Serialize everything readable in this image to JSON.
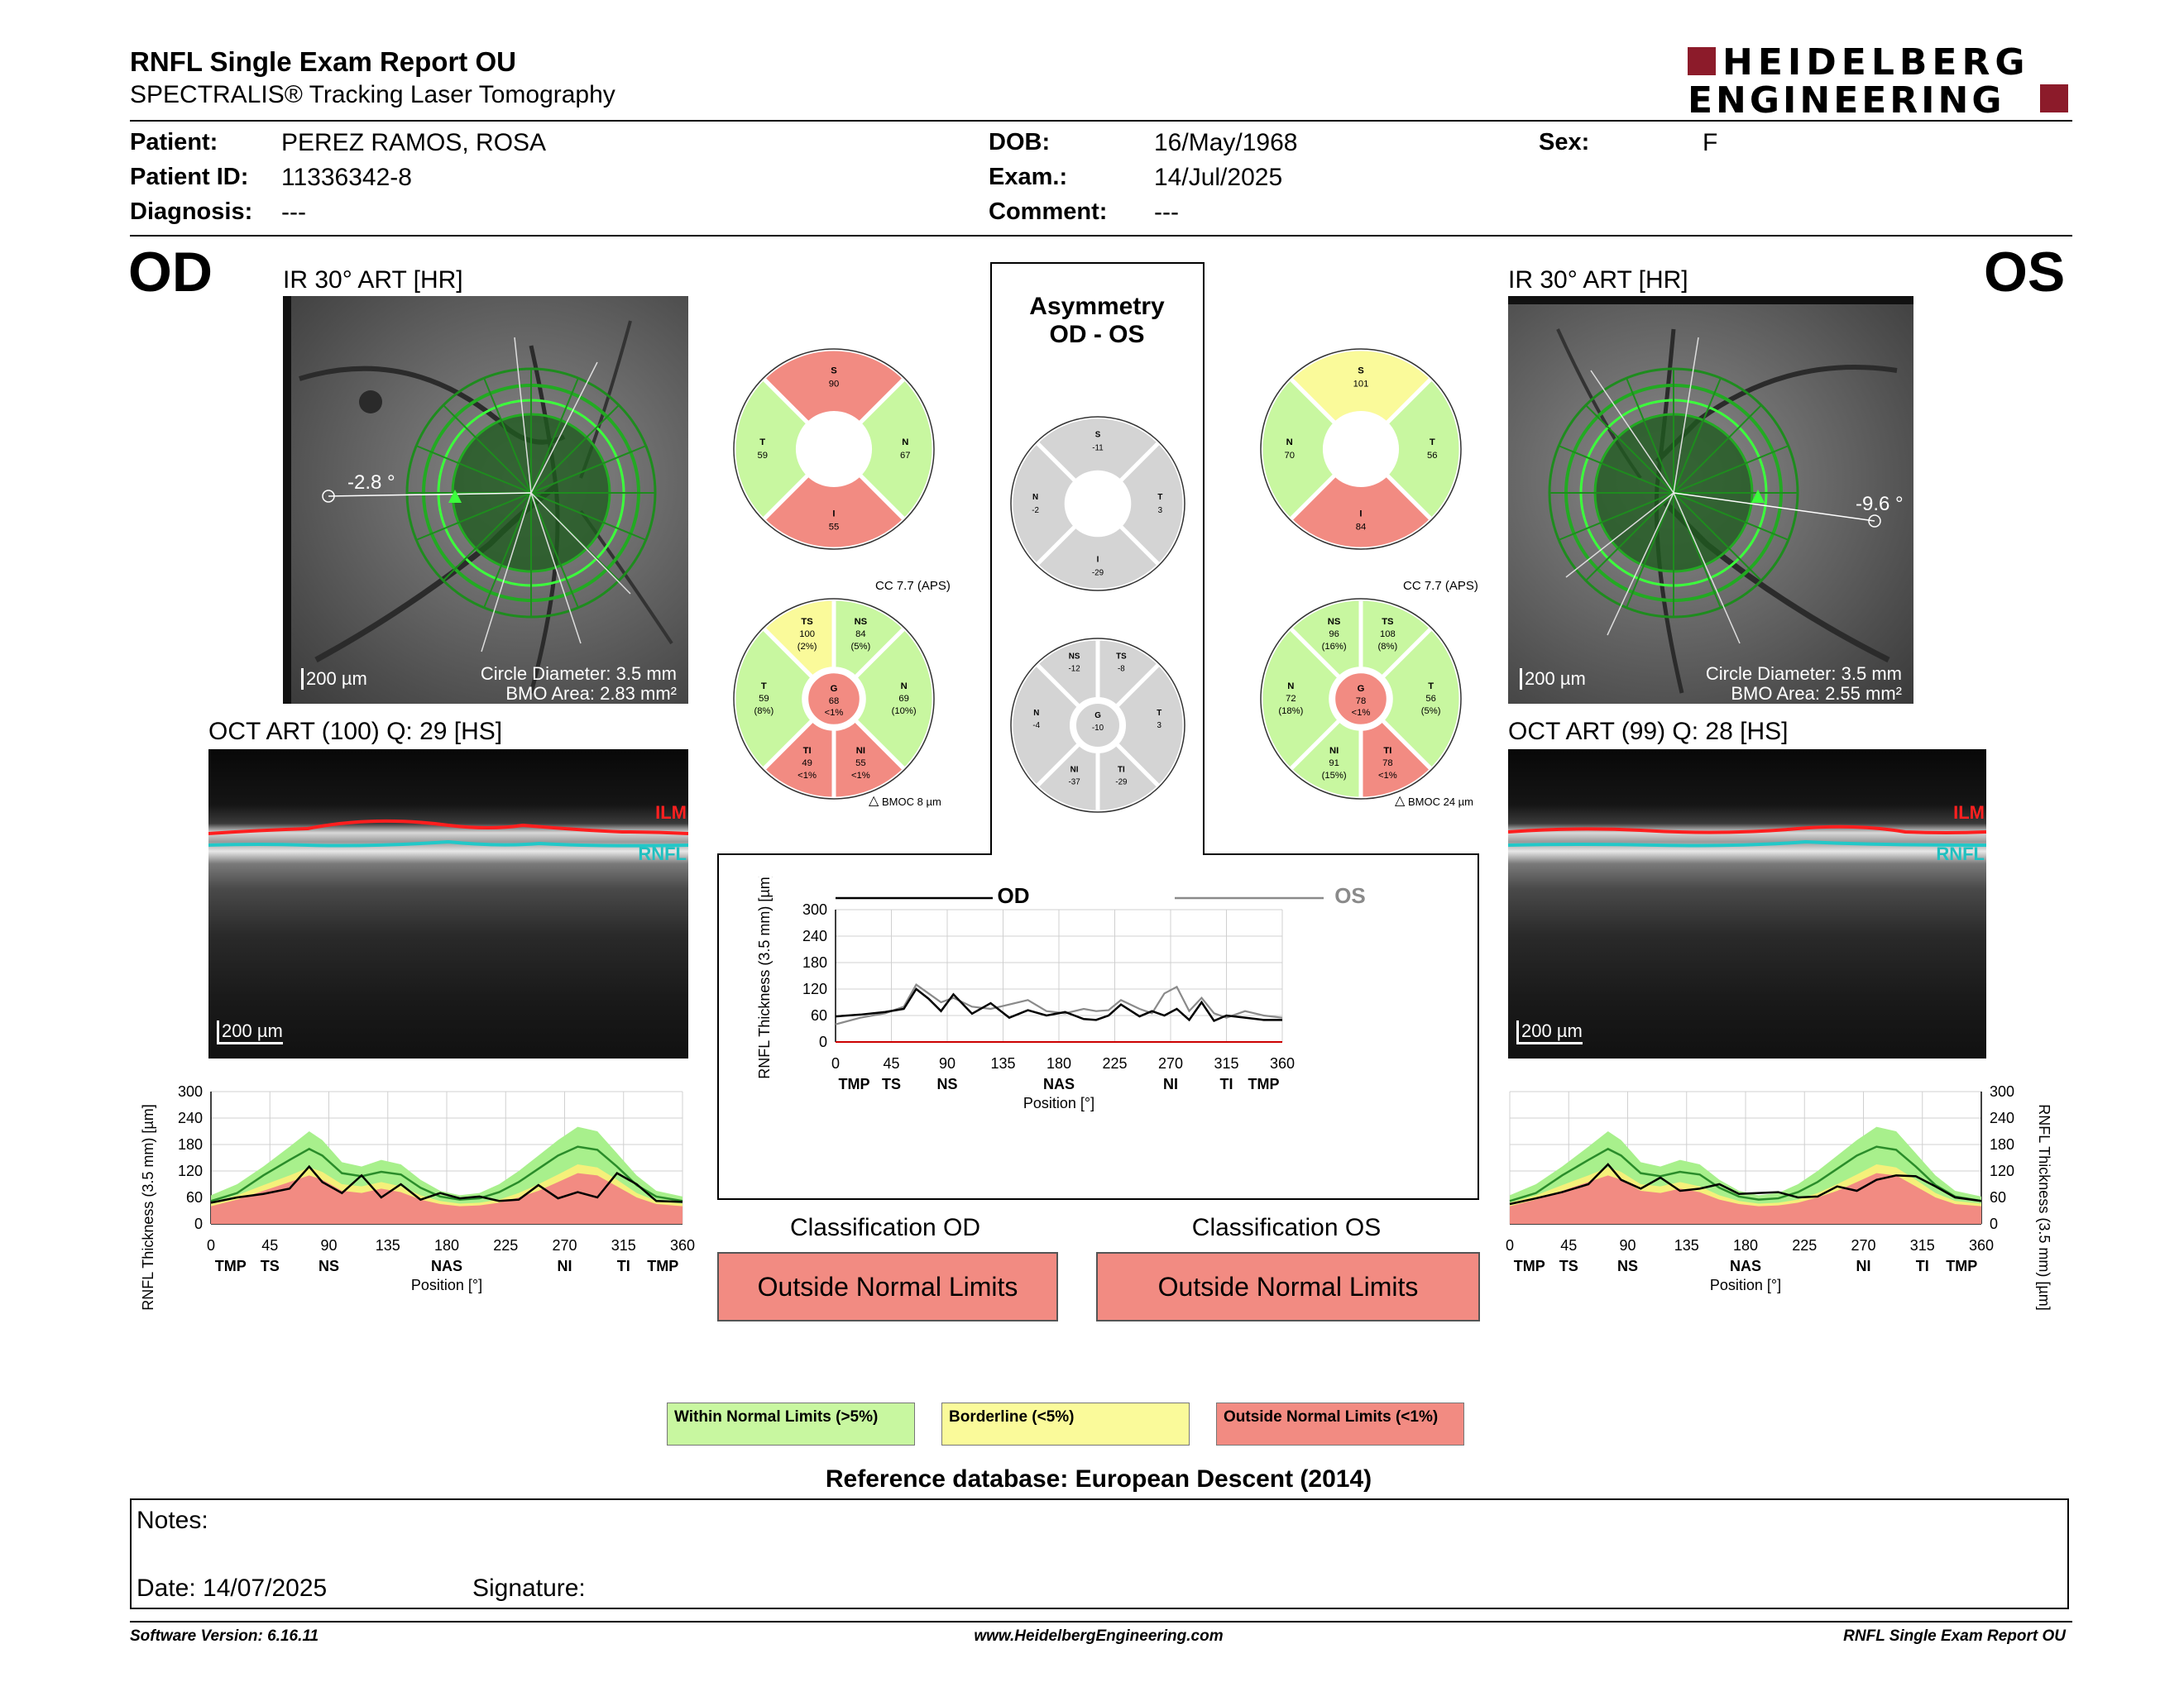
{
  "header": {
    "title": "RNFL Single Exam Report OU",
    "subtitle": "SPECTRALIS® Tracking Laser Tomography",
    "logo_line1": "HEIDELBERG",
    "logo_line2": "ENGINEERING"
  },
  "patient": {
    "patient_label": "Patient:",
    "patient_value": "PEREZ RAMOS, ROSA",
    "id_label": "Patient ID:",
    "id_value": "11336342-8",
    "diag_label": "Diagnosis:",
    "diag_value": "---",
    "dob_label": "DOB:",
    "dob_value": "16/May/1968",
    "exam_label": "Exam.:",
    "exam_value": "14/Jul/2025",
    "comment_label": "Comment:",
    "comment_value": "---",
    "sex_label": "Sex:",
    "sex_value": "F"
  },
  "od": {
    "eye": "OD",
    "ir_title": "IR 30° ART [HR]",
    "angle": "-2.8 °",
    "scale": "200 µm",
    "circle": "Circle Diameter: 3.5 mm",
    "bmo": "BMO Area: 2.83 mm²",
    "oct_title": "OCT ART (100) Q: 29 [HS]",
    "oct_scale": "200 µm",
    "ilm": "ILM",
    "rnfl": "RNFL",
    "classification_title": "Classification OD",
    "classification": "Outside Normal Limits",
    "pie4": {
      "S": "90",
      "N": "67",
      "I": "55",
      "T": "59"
    },
    "cc": "CC 7.7 (APS)",
    "bmoc": "BMOC 8 µm"
  },
  "os": {
    "eye": "OS",
    "ir_title": "IR 30° ART [HR]",
    "angle": "-9.6 °",
    "scale": "200 µm",
    "circle": "Circle Diameter: 3.5 mm",
    "bmo": "BMO Area: 2.55 mm²",
    "oct_title": "OCT ART (99) Q: 28 [HS]",
    "oct_scale": "200 µm",
    "ilm": "ILM",
    "rnfl": "RNFL",
    "classification_title": "Classification OS",
    "classification": "Outside Normal Limits",
    "pie4": {
      "S": "101",
      "N": "70",
      "I": "84",
      "T": "56"
    },
    "cc": "CC 7.7 (APS)",
    "bmoc": "BMOC 24 µm"
  },
  "asym": {
    "title1": "Asymmetry",
    "title2": "OD - OS",
    "pie4": {
      "S": "-11",
      "N": "-2",
      "I": "-29",
      "T": "3"
    }
  },
  "sectors6": {
    "od": [
      {
        "k": "TS",
        "v": "100",
        "p": "(2%)",
        "c": "#fafa9a"
      },
      {
        "k": "NS",
        "v": "84",
        "p": "(5%)",
        "c": "#c8f7a0"
      },
      {
        "k": "N",
        "v": "69",
        "p": "(10%)",
        "c": "#c8f7a0"
      },
      {
        "k": "NI",
        "v": "55",
        "p": "<1%",
        "c": "#f28b82"
      },
      {
        "k": "TI",
        "v": "49",
        "p": "<1%",
        "c": "#f28b82"
      },
      {
        "k": "T",
        "v": "59",
        "p": "(8%)",
        "c": "#c8f7a0"
      },
      {
        "k": "G",
        "v": "68",
        "p": "<1%",
        "c": "#f28b82"
      }
    ],
    "asym": [
      {
        "k": "NS",
        "v": "-12",
        "p": "",
        "c": "#d4d4d4"
      },
      {
        "k": "TS",
        "v": "-8",
        "p": "",
        "c": "#d4d4d4"
      },
      {
        "k": "T",
        "v": "3",
        "p": "",
        "c": "#d4d4d4"
      },
      {
        "k": "TI",
        "v": "-29",
        "p": "",
        "c": "#d4d4d4"
      },
      {
        "k": "NI",
        "v": "-37",
        "p": "",
        "c": "#d4d4d4"
      },
      {
        "k": "N",
        "v": "-4",
        "p": "",
        "c": "#d4d4d4"
      },
      {
        "k": "G",
        "v": "-10",
        "p": "",
        "c": "#d4d4d4"
      }
    ],
    "os": [
      {
        "k": "NS",
        "v": "96",
        "p": "(16%)",
        "c": "#c8f7a0"
      },
      {
        "k": "TS",
        "v": "108",
        "p": "(8%)",
        "c": "#c8f7a0"
      },
      {
        "k": "T",
        "v": "56",
        "p": "(5%)",
        "c": "#c8f7a0"
      },
      {
        "k": "TI",
        "v": "78",
        "p": "<1%",
        "c": "#f28b82"
      },
      {
        "k": "NI",
        "v": "91",
        "p": "(15%)",
        "c": "#c8f7a0"
      },
      {
        "k": "N",
        "v": "72",
        "p": "(18%)",
        "c": "#c8f7a0"
      },
      {
        "k": "G",
        "v": "78",
        "p": "<1%",
        "c": "#f28b82"
      }
    ]
  },
  "pie4_colors": {
    "od": {
      "S": "#f28b82",
      "N": "#c8f7a0",
      "I": "#f28b82",
      "T": "#c8f7a0"
    },
    "os": {
      "S": "#fafa9a",
      "N": "#c8f7a0",
      "I": "#f28b82",
      "T": "#c8f7a0"
    },
    "asym": {
      "S": "#d4d4d4",
      "N": "#d4d4d4",
      "I": "#d4d4d4",
      "T": "#d4d4d4"
    }
  },
  "chart_data": [
    {
      "type": "line",
      "ylabel": "RNFL Thickness (3.5 mm) [µm]",
      "xlabel": "Position [°]",
      "x_ticks": [
        0,
        45,
        90,
        135,
        180,
        225,
        270,
        315,
        360
      ],
      "y_ticks": [
        0,
        60,
        120,
        180,
        240,
        300
      ],
      "sectors": [
        "TMP",
        "TS",
        "NS",
        "NAS",
        "NI",
        "TI",
        "TMP"
      ],
      "series": [
        {
          "name": "OD",
          "x": [
            0,
            20,
            40,
            55,
            65,
            75,
            85,
            95,
            110,
            125,
            140,
            155,
            170,
            185,
            200,
            210,
            220,
            230,
            245,
            255,
            265,
            275,
            285,
            295,
            305,
            315,
            330,
            345,
            360
          ],
          "values": [
            58,
            62,
            68,
            75,
            120,
            98,
            70,
            108,
            64,
            88,
            55,
            72,
            60,
            68,
            52,
            50,
            60,
            85,
            58,
            70,
            60,
            75,
            50,
            90,
            48,
            60,
            55,
            50,
            50
          ]
        },
        {
          "name": "OS",
          "x": [
            0,
            20,
            40,
            55,
            65,
            75,
            85,
            95,
            110,
            125,
            140,
            155,
            170,
            185,
            200,
            210,
            220,
            230,
            245,
            255,
            265,
            275,
            285,
            295,
            305,
            315,
            330,
            345,
            360
          ],
          "values": [
            40,
            55,
            65,
            80,
            130,
            110,
            90,
            100,
            80,
            75,
            85,
            95,
            70,
            65,
            75,
            70,
            72,
            95,
            75,
            65,
            110,
            125,
            70,
            100,
            65,
            55,
            70,
            60,
            55
          ]
        }
      ]
    },
    {
      "type": "area",
      "ylabel": "RNFL Thickness (3.5 mm) [µm]",
      "xlabel": "Position [°]",
      "x_ticks": [
        0,
        45,
        90,
        135,
        180,
        225,
        270,
        315,
        360
      ],
      "y_ticks": [
        0,
        60,
        120,
        180,
        240,
        300
      ],
      "sectors": [
        "TMP",
        "TS",
        "NS",
        "NAS",
        "NI",
        "TI",
        "TMP"
      ],
      "x": [
        0,
        20,
        40,
        60,
        75,
        85,
        100,
        115,
        130,
        145,
        160,
        175,
        190,
        205,
        220,
        235,
        250,
        265,
        280,
        295,
        310,
        325,
        340,
        360
      ],
      "bands": {
        "red_top": [
          40,
          55,
          75,
          95,
          110,
          100,
          75,
          70,
          80,
          72,
          55,
          45,
          40,
          42,
          48,
          60,
          75,
          95,
          115,
          110,
          85,
          60,
          45,
          40
        ],
        "yellow_top": [
          48,
          65,
          88,
          110,
          128,
          118,
          90,
          85,
          95,
          85,
          65,
          52,
          46,
          48,
          55,
          70,
          90,
          112,
          135,
          128,
          100,
          70,
          52,
          46
        ],
        "green_top": [
          65,
          90,
          130,
          175,
          210,
          190,
          140,
          130,
          145,
          135,
          100,
          75,
          65,
          70,
          90,
          120,
          155,
          190,
          220,
          210,
          160,
          110,
          75,
          62
        ]
      },
      "mean": [
        52,
        70,
        110,
        145,
        170,
        155,
        115,
        108,
        118,
        112,
        82,
        62,
        55,
        58,
        72,
        95,
        125,
        155,
        175,
        168,
        130,
        88,
        62,
        52
      ],
      "od_values": [
        48,
        60,
        68,
        80,
        130,
        95,
        70,
        110,
        60,
        90,
        55,
        70,
        58,
        62,
        52,
        55,
        88,
        58,
        72,
        60,
        115,
        90,
        52,
        50
      ],
      "os_values": [
        45,
        58,
        72,
        90,
        135,
        100,
        80,
        105,
        75,
        80,
        90,
        68,
        70,
        72,
        60,
        62,
        85,
        75,
        100,
        110,
        108,
        85,
        60,
        52
      ]
    }
  ],
  "classification": {
    "od_title": "Classification OD",
    "os_title": "Classification OS"
  },
  "legend": {
    "within": "Within Normal Limits (>5%)",
    "border": "Borderline (<5%)",
    "outside": "Outside Normal Limits (<1%)",
    "within_color": "#c8f7a0",
    "border_color": "#fafa9a",
    "outside_color": "#f28b82"
  },
  "refdb": "Reference database: European Descent (2014)",
  "notes": {
    "notes_label": "Notes:",
    "date_label": "Date: 14/07/2025",
    "signature_label": "Signature:"
  },
  "footer": {
    "version": "Software Version: 6.16.11",
    "url": "www.HeidelbergEngineering.com",
    "report": "RNFL Single Exam Report OU"
  }
}
